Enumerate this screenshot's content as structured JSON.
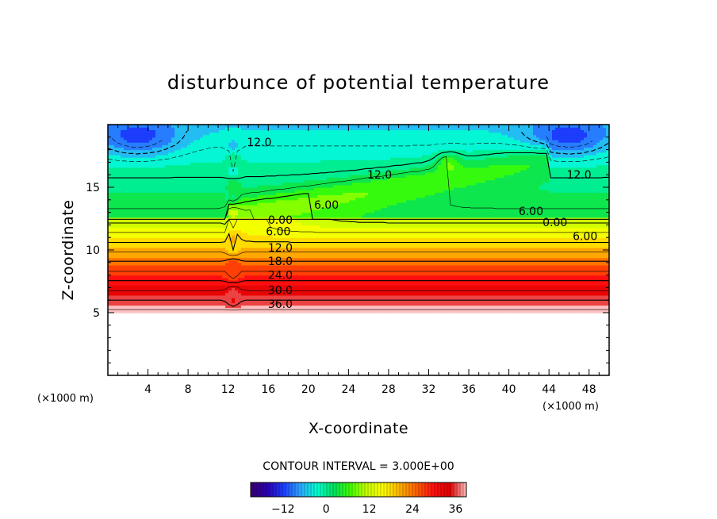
{
  "chart_data": {
    "type": "contour",
    "title": "disturbunce of potential temperature",
    "xlabel": "X-coordinate",
    "ylabel": "Z-coordinate",
    "x_unit": "(×1000 m)",
    "y_unit": "(×1000 m)",
    "xlim": [
      0,
      50
    ],
    "ylim": [
      0,
      20
    ],
    "x_ticks": [
      4,
      8,
      12,
      16,
      20,
      24,
      28,
      32,
      36,
      40,
      44,
      48
    ],
    "y_ticks": [
      5,
      10,
      15
    ],
    "y_minor_step": 1,
    "x_minor_step": 1,
    "data_ylim": [
      5,
      20
    ],
    "contour_interval_text": "CONTOUR INTERVAL = 3.000E+00",
    "contour_interval": 3,
    "value_range": [
      -21,
      40
    ],
    "negative_contours_dashed": true,
    "colorbar": {
      "ticks": [
        -12,
        0,
        12,
        24,
        36
      ],
      "vmin": -21,
      "vmax": 39,
      "colors": [
        "#3a0070",
        "#2a00b0",
        "#1b40ff",
        "#2fa6ff",
        "#00ffd0",
        "#00e060",
        "#40ff00",
        "#c8ff00",
        "#ffff00",
        "#ffb000",
        "#ff6000",
        "#ff1010",
        "#e00000",
        "#ffc0c0"
      ]
    },
    "contour_labels": [
      {
        "text": "12.0",
        "x": 15.1,
        "y": 18.6
      },
      {
        "text": "12.0",
        "x": 27.1,
        "y": 16.0
      },
      {
        "text": "12.0",
        "x": 47.0,
        "y": 16.0
      },
      {
        "text": "6.00",
        "x": 21.8,
        "y": 13.6
      },
      {
        "text": "6.00",
        "x": 42.2,
        "y": 13.1
      },
      {
        "text": "0.00",
        "x": 17.2,
        "y": 12.4
      },
      {
        "text": "0.00",
        "x": 44.6,
        "y": 12.2
      },
      {
        "text": "6.00",
        "x": 17.0,
        "y": 11.5
      },
      {
        "text": "6.00",
        "x": 47.6,
        "y": 11.1
      },
      {
        "text": "12.0",
        "x": 17.2,
        "y": 10.2
      },
      {
        "text": "18.0",
        "x": 17.2,
        "y": 9.1
      },
      {
        "text": "24.0",
        "x": 17.2,
        "y": 8.0
      },
      {
        "text": "30.0",
        "x": 17.2,
        "y": 6.8
      },
      {
        "text": "36.0",
        "x": 17.2,
        "y": 5.7
      }
    ]
  }
}
